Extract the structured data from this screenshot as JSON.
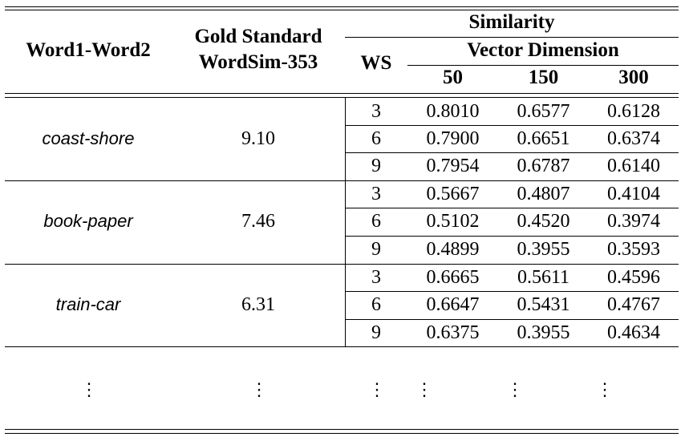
{
  "table": {
    "headers": {
      "word_pair": "Word1-Word2",
      "gold_line1": "Gold Standard",
      "gold_line2": "WordSim-353",
      "similarity": "Similarity",
      "ws": "WS",
      "vector_dimension": "Vector Dimension",
      "dims": [
        "50",
        "150",
        "300"
      ]
    },
    "groups": [
      {
        "pair": "coast-shore",
        "gold": "9.10",
        "rows": [
          {
            "ws": "3",
            "v50": "0.8010",
            "v150": "0.6577",
            "v300": "0.6128"
          },
          {
            "ws": "6",
            "v50": "0.7900",
            "v150": "0.6651",
            "v300": "0.6374"
          },
          {
            "ws": "9",
            "v50": "0.7954",
            "v150": "0.6787",
            "v300": "0.6140"
          }
        ]
      },
      {
        "pair": "book-paper",
        "gold": "7.46",
        "rows": [
          {
            "ws": "3",
            "v50": "0.5667",
            "v150": "0.4807",
            "v300": "0.4104"
          },
          {
            "ws": "6",
            "v50": "0.5102",
            "v150": "0.4520",
            "v300": "0.3974"
          },
          {
            "ws": "9",
            "v50": "0.4899",
            "v150": "0.3955",
            "v300": "0.3593"
          }
        ]
      },
      {
        "pair": "train-car",
        "gold": "6.31",
        "rows": [
          {
            "ws": "3",
            "v50": "0.6665",
            "v150": "0.5611",
            "v300": "0.4596"
          },
          {
            "ws": "6",
            "v50": "0.6647",
            "v150": "0.5431",
            "v300": "0.4767"
          },
          {
            "ws": "9",
            "v50": "0.6375",
            "v150": "0.3955",
            "v300": "0.4634"
          }
        ]
      }
    ],
    "ellipsis": "⋮"
  }
}
